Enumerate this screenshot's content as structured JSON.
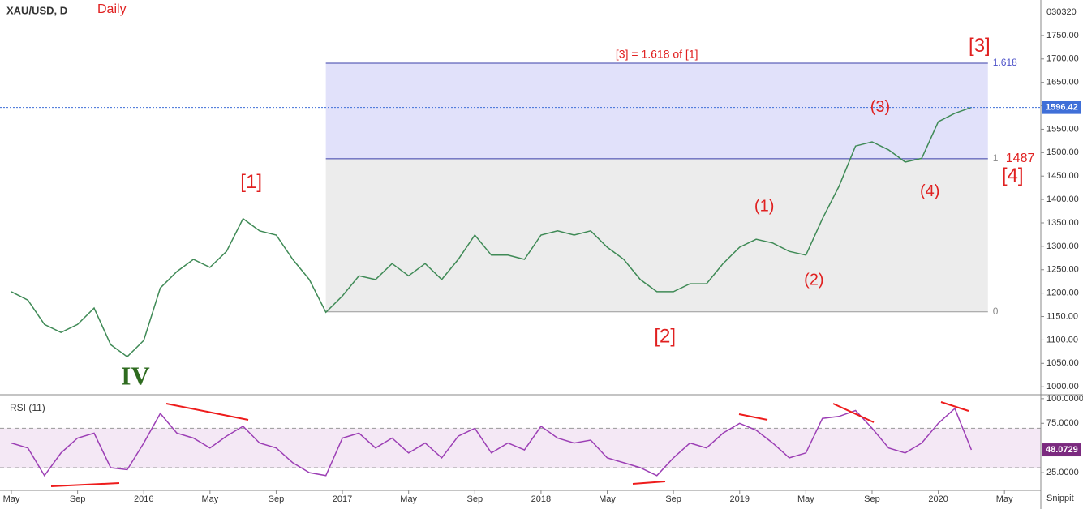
{
  "chart_data": [
    {
      "type": "line",
      "title": "XAU/USD, D",
      "subtitle": "Daily",
      "corner_text": "030320",
      "x": [
        "2015-05",
        "2015-06",
        "2015-07",
        "2015-08",
        "2015-09",
        "2015-10",
        "2015-11",
        "2015-12",
        "2016-01",
        "2016-02",
        "2016-03",
        "2016-04",
        "2016-05",
        "2016-06",
        "2016-07",
        "2016-08",
        "2016-09",
        "2016-10",
        "2016-11",
        "2016-12",
        "2017-01",
        "2017-02",
        "2017-03",
        "2017-04",
        "2017-05",
        "2017-06",
        "2017-07",
        "2017-08",
        "2017-09",
        "2017-10",
        "2017-11",
        "2017-12",
        "2018-01",
        "2018-02",
        "2018-03",
        "2018-04",
        "2018-05",
        "2018-06",
        "2018-07",
        "2018-08",
        "2018-09",
        "2018-10",
        "2018-11",
        "2018-12",
        "2019-01",
        "2019-02",
        "2019-03",
        "2019-04",
        "2019-05",
        "2019-06",
        "2019-07",
        "2019-08",
        "2019-09",
        "2019-10",
        "2019-11",
        "2019-12",
        "2020-01",
        "2020-02",
        "2020-03"
      ],
      "xlim": [
        "2015-05",
        "2020-07"
      ],
      "xticks": [
        {
          "value": "2015-05",
          "label": "May"
        },
        {
          "value": "2015-09",
          "label": "Sep"
        },
        {
          "value": "2016-01",
          "label": "2016"
        },
        {
          "value": "2016-05",
          "label": "May"
        },
        {
          "value": "2016-09",
          "label": "Sep"
        },
        {
          "value": "2017-01",
          "label": "2017"
        },
        {
          "value": "2017-05",
          "label": "May"
        },
        {
          "value": "2017-09",
          "label": "Sep"
        },
        {
          "value": "2018-01",
          "label": "2018"
        },
        {
          "value": "2018-05",
          "label": "May"
        },
        {
          "value": "2018-09",
          "label": "Sep"
        },
        {
          "value": "2019-01",
          "label": "2019"
        },
        {
          "value": "2019-05",
          "label": "May"
        },
        {
          "value": "2019-09",
          "label": "Sep"
        },
        {
          "value": "2020-01",
          "label": "2020"
        },
        {
          "value": "2020-05",
          "label": "May"
        }
      ],
      "ylim": [
        983,
        1826
      ],
      "yticks": [
        {
          "value": 1000,
          "label": "1000.00"
        },
        {
          "value": 1050,
          "label": "1050.00"
        },
        {
          "value": 1100,
          "label": "1100.00"
        },
        {
          "value": 1150,
          "label": "1150.00"
        },
        {
          "value": 1200,
          "label": "1200.00"
        },
        {
          "value": 1250,
          "label": "1250.00"
        },
        {
          "value": 1300,
          "label": "1300.00"
        },
        {
          "value": 1350,
          "label": "1350.00"
        },
        {
          "value": 1400,
          "label": "1400.00"
        },
        {
          "value": 1450,
          "label": "1450.00"
        },
        {
          "value": 1500,
          "label": "1500.00"
        },
        {
          "value": 1550,
          "label": "1550.00"
        },
        {
          "value": 1600,
          "label": "1600.00"
        },
        {
          "value": 1650,
          "label": "1650.00"
        },
        {
          "value": 1700,
          "label": "1700.00"
        },
        {
          "value": 1750,
          "label": "1750.00"
        }
      ],
      "series": [
        {
          "color": "#3f8a56",
          "values": [
            1203,
            1185,
            1133,
            1116,
            1133,
            1168,
            1090,
            1064,
            1099,
            1211,
            1246,
            1272,
            1255,
            1289,
            1359,
            1333,
            1324,
            1272,
            1229,
            1159,
            1194,
            1237,
            1229,
            1263,
            1237,
            1263,
            1229,
            1272,
            1324,
            1281,
            1281,
            1272,
            1324,
            1333,
            1324,
            1333,
            1298,
            1272,
            1229,
            1203,
            1203,
            1220,
            1220,
            1263,
            1298,
            1315,
            1307,
            1289,
            1281,
            1359,
            1428,
            1514,
            1523,
            1506,
            1480,
            1488,
            1566,
            1584,
            1596.42
          ]
        }
      ],
      "last_price_color": "#3f6fd8",
      "fib": {
        "title": "[3] = 1.618 of [1]",
        "start": "2016-12",
        "end": "2020-04",
        "levels": [
          {
            "ratio": 0,
            "price": 1160
          },
          {
            "ratio": 1,
            "price": 1487
          },
          {
            "ratio": 1.618,
            "price": 1691
          }
        ]
      },
      "annotations": [
        {
          "text": "IV",
          "x": "2015-12",
          "y": 1017,
          "color": "#2e6b1f"
        },
        {
          "text": "[1]",
          "x": "2016-07",
          "y": 1435,
          "color": "#e02020"
        },
        {
          "text": "[2]",
          "x": "2018-08",
          "y": 1106,
          "color": "#e02020"
        },
        {
          "text": "[3]",
          "x": "2020-03",
          "y": 1726,
          "color": "#e02020"
        },
        {
          "text": "[4]",
          "x": "2020-05",
          "y": 1449,
          "color": "#e02020"
        },
        {
          "text": "(1)",
          "x": "2019-02",
          "y": 1384,
          "color": "#e02020"
        },
        {
          "text": "(2)",
          "x": "2019-05",
          "y": 1227,
          "color": "#e02020"
        },
        {
          "text": "(3)",
          "x": "2019-09",
          "y": 1596,
          "color": "#e02020"
        },
        {
          "text": "(4)",
          "x": "2019-12",
          "y": 1416,
          "color": "#e02020"
        }
      ]
    },
    {
      "type": "line",
      "title": "RSI (11)",
      "footer": "Snippit",
      "ylim": [
        7,
        104
      ],
      "yticks": [
        {
          "value": 25,
          "label": "25.0000"
        },
        {
          "value": 75,
          "label": "75.0000"
        },
        {
          "value": 100,
          "label": "100.0000"
        }
      ],
      "bands": [
        30,
        70
      ],
      "series": [
        {
          "color": "#9c3fb5",
          "values": [
            55,
            50,
            22,
            45,
            60,
            65,
            30,
            28,
            55,
            85,
            65,
            60,
            50,
            62,
            72,
            55,
            50,
            35,
            25,
            22,
            60,
            65,
            50,
            60,
            45,
            55,
            40,
            62,
            70,
            45,
            55,
            48,
            72,
            60,
            55,
            58,
            40,
            35,
            30,
            22,
            40,
            55,
            50,
            65,
            75,
            68,
            55,
            40,
            45,
            80,
            82,
            88,
            70,
            50,
            45,
            55,
            75,
            90,
            48.0729
          ]
        }
      ]
    }
  ]
}
